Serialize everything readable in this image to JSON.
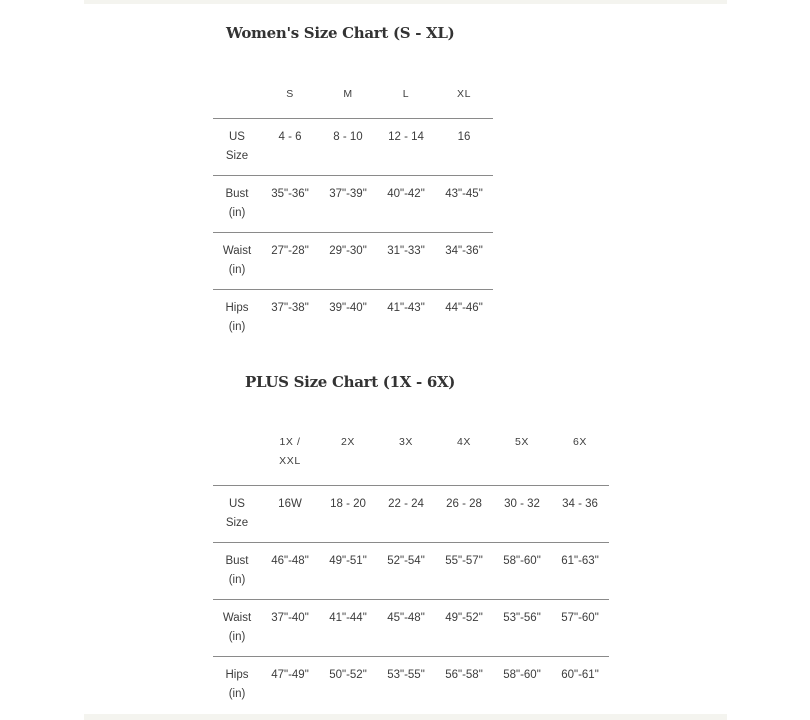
{
  "women": {
    "title": "Women's Size Chart (S - XL)",
    "columns": [
      "S",
      "M",
      "L",
      "XL"
    ],
    "rows": [
      {
        "label": [
          "US",
          "Size"
        ],
        "values": [
          "4 - 6",
          "8 - 10",
          "12 - 14",
          "16"
        ]
      },
      {
        "label": [
          "Bust",
          "(in)"
        ],
        "values": [
          "35\"-36\"",
          "37\"-39\"",
          "40\"-42\"",
          "43\"-45\""
        ]
      },
      {
        "label": [
          "Waist",
          "(in)"
        ],
        "values": [
          "27\"-28\"",
          "29\"-30\"",
          "31\"-33\"",
          "34\"-36\""
        ]
      },
      {
        "label": [
          "Hips",
          "(in)"
        ],
        "values": [
          "37\"-38\"",
          "39\"-40\"",
          "41\"-43\"",
          "44\"-46\""
        ]
      }
    ]
  },
  "plus": {
    "title": "PLUS Size Chart (1X - 6X)",
    "columns": [
      [
        "1X /",
        "XXL"
      ],
      [
        "2X"
      ],
      [
        "3X"
      ],
      [
        "4X"
      ],
      [
        "5X"
      ],
      [
        "6X"
      ]
    ],
    "rows": [
      {
        "label": [
          "US",
          "Size"
        ],
        "values": [
          "16W",
          "18 - 20",
          "22 - 24",
          "26 - 28",
          "30 - 32",
          "34 - 36"
        ]
      },
      {
        "label": [
          "Bust",
          "(in)"
        ],
        "values": [
          "46\"-48\"",
          "49\"-51\"",
          "52\"-54\"",
          "55\"-57\"",
          "58\"-60\"",
          "61\"-63\""
        ]
      },
      {
        "label": [
          "Waist",
          "(in)"
        ],
        "values": [
          "37\"-40\"",
          "41\"-44\"",
          "45\"-48\"",
          "49\"-52\"",
          "53\"-56\"",
          "57\"-60\""
        ]
      },
      {
        "label": [
          "Hips",
          "(in)"
        ],
        "values": [
          "47\"-49\"",
          "50\"-52\"",
          "53\"-55\"",
          "56\"-58\"",
          "58\"-60\"",
          "60\"-61\""
        ]
      }
    ]
  }
}
